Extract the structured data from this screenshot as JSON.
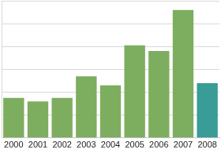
{
  "chart_data": {
    "type": "bar",
    "categories": [
      "2000",
      "2001",
      "2002",
      "2003",
      "2004",
      "2005",
      "2006",
      "2007",
      "2008"
    ],
    "values": [
      1.75,
      1.6,
      1.75,
      2.7,
      2.3,
      4.05,
      3.8,
      5.6,
      2.4
    ],
    "colors": [
      "#7dae5f",
      "#7dae5f",
      "#7dae5f",
      "#7dae5f",
      "#7dae5f",
      "#7dae5f",
      "#7dae5f",
      "#7dae5f",
      "#3a9c96"
    ],
    "ylim": [
      0,
      6
    ],
    "yticks": [
      0,
      1,
      2,
      3,
      4,
      5,
      6
    ],
    "grid": true,
    "tick_labels": "x"
  }
}
